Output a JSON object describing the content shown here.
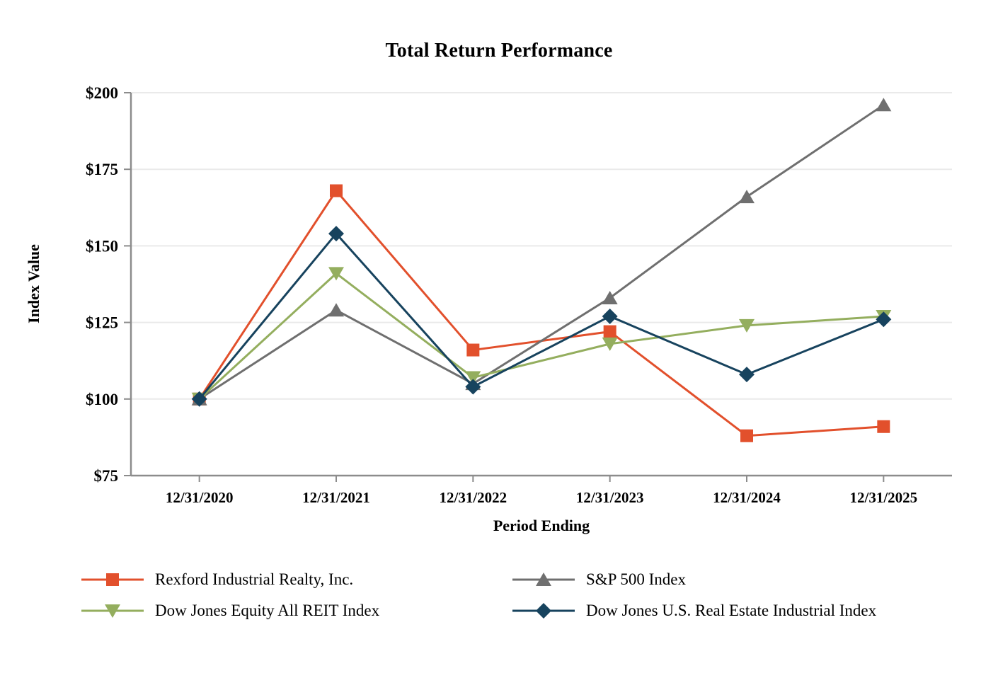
{
  "chart_data": {
    "type": "line",
    "title": "Total Return Performance",
    "xlabel": "Period Ending",
    "ylabel": "Index Value",
    "categories": [
      "12/31/2020",
      "12/31/2021",
      "12/31/2022",
      "12/31/2023",
      "12/31/2024",
      "12/31/2025"
    ],
    "series": [
      {
        "name": "Rexford Industrial Realty, Inc.",
        "color": "#E2502C",
        "marker": "square",
        "values": [
          100,
          168,
          116,
          122,
          88,
          91
        ]
      },
      {
        "name": "S&P 500 Index",
        "color": "#6F6F6F",
        "marker": "triangle-up",
        "values": [
          100,
          129,
          105,
          133,
          166,
          196
        ]
      },
      {
        "name": "Dow Jones Equity All REIT Index",
        "color": "#94AE5E",
        "marker": "triangle-down",
        "values": [
          100,
          141,
          107,
          118,
          124,
          127
        ]
      },
      {
        "name": "Dow Jones U.S. Real Estate Industrial Index",
        "color": "#17435E",
        "marker": "diamond",
        "values": [
          100,
          154,
          104,
          127,
          108,
          126
        ]
      }
    ],
    "ylim": [
      75,
      200
    ],
    "yticks": [
      75,
      100,
      125,
      150,
      175,
      200
    ],
    "ytick_labels": [
      "$75",
      "$100",
      "$125",
      "$150",
      "$175",
      "$200"
    ],
    "grid": true,
    "legend_position": "bottom",
    "legend_columns": 2,
    "axis_color": "#8C8C8C",
    "gridline_color": "#EAEAEA"
  }
}
